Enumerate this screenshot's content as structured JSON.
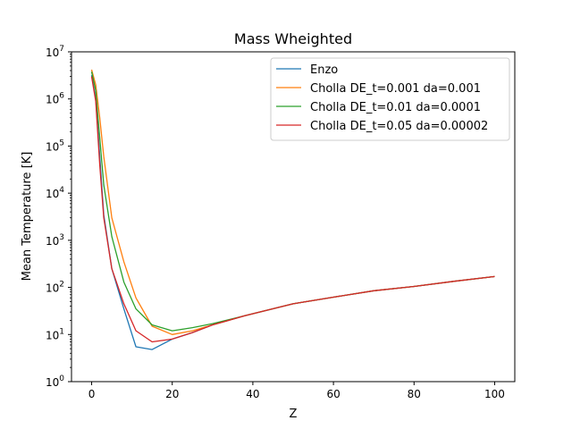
{
  "chart_data": {
    "type": "line",
    "title": "Mass Wheighted",
    "xlabel": "Z",
    "ylabel": "Mean Temperature  [K]",
    "xlim": [
      -5,
      105
    ],
    "ylim": [
      1,
      10000000
    ],
    "yscale": "log",
    "grid": false,
    "legend_position": "top-right",
    "x_ticks": [
      0,
      20,
      40,
      60,
      80,
      100
    ],
    "x_tick_labels": [
      "0",
      "20",
      "40",
      "60",
      "80",
      "100"
    ],
    "y_tick_exponents": [
      0,
      1,
      2,
      3,
      4,
      5,
      6,
      7
    ],
    "y_tick_base": "10",
    "series": [
      {
        "name": "Enzo",
        "color": "#1f77b4",
        "x": [
          0,
          1,
          2,
          3,
          5,
          8,
          11,
          15,
          20,
          25,
          30,
          38,
          50,
          60,
          70,
          80,
          90,
          100
        ],
        "y": [
          3200000,
          1000000,
          60000,
          3500,
          250,
          35,
          5.5,
          4.8,
          8,
          11,
          16,
          25,
          45,
          62,
          85,
          105,
          135,
          170
        ]
      },
      {
        "name": "Cholla DE_t=0.001  da=0.001",
        "color": "#ff7f0e",
        "x": [
          0,
          1,
          2,
          3,
          5,
          8,
          11,
          15,
          20,
          25,
          30,
          38,
          50,
          60,
          70,
          80,
          90,
          100
        ],
        "y": [
          4200000,
          2000000,
          400000,
          60000,
          3000,
          350,
          60,
          15,
          10,
          12,
          16,
          25,
          45,
          62,
          85,
          105,
          135,
          170
        ]
      },
      {
        "name": "Cholla DE_t=0.01  da=0.0001",
        "color": "#2ca02c",
        "x": [
          0,
          1,
          2,
          3,
          5,
          8,
          11,
          15,
          20,
          25,
          30,
          38,
          50,
          60,
          70,
          80,
          90,
          100
        ],
        "y": [
          3800000,
          1500000,
          150000,
          15000,
          1200,
          130,
          35,
          16,
          12,
          14,
          17,
          25,
          45,
          62,
          85,
          105,
          135,
          170
        ]
      },
      {
        "name": "Cholla DE_t=0.05  da=0.00002",
        "color": "#d62728",
        "x": [
          0,
          1,
          2,
          3,
          5,
          8,
          11,
          15,
          20,
          25,
          30,
          38,
          50,
          60,
          70,
          80,
          90,
          100
        ],
        "y": [
          3000000,
          900000,
          40000,
          3000,
          250,
          45,
          12,
          7,
          8,
          11,
          16,
          25,
          45,
          62,
          85,
          105,
          135,
          170
        ]
      }
    ]
  }
}
